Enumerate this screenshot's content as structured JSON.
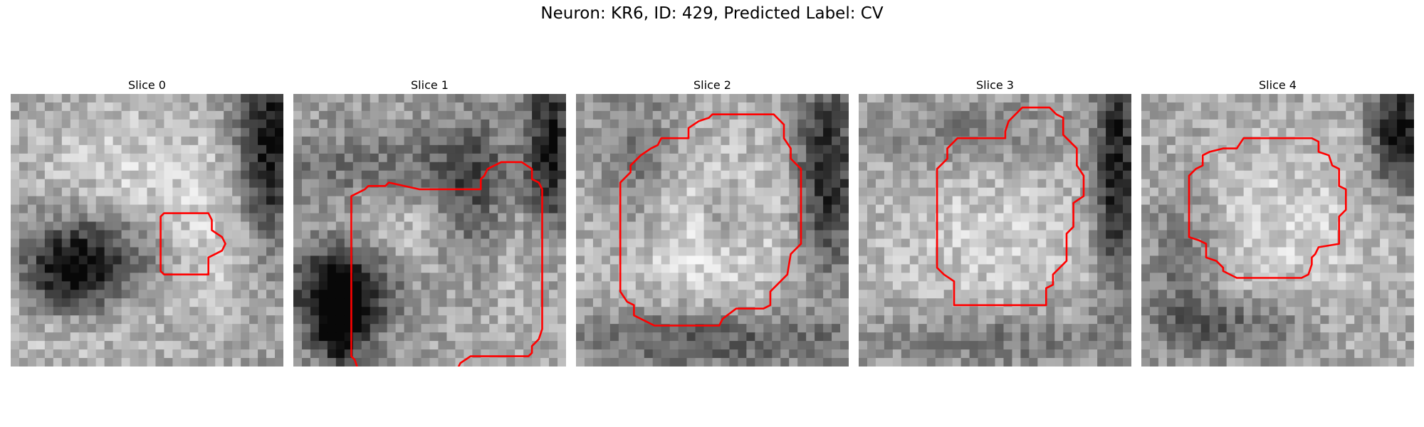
{
  "figure": {
    "title": "Neuron: KR6, ID: 429, Predicted Label: CV"
  },
  "slices": [
    {
      "title": "Slice 0",
      "seed": 11,
      "blobs": [
        [
          0.45,
          0.28,
          0.3,
          0.22,
          0.18
        ],
        [
          0.78,
          0.6,
          0.3,
          0.2,
          0.16
        ],
        [
          0.12,
          0.8,
          0.28,
          0.18,
          0.15
        ]
      ],
      "darks": [
        [
          0.3,
          0.6,
          0.18,
          0.12,
          0.55
        ],
        [
          0.95,
          0.2,
          0.08,
          0.3,
          0.6
        ],
        [
          0.2,
          0.68,
          0.12,
          0.1,
          0.35
        ]
      ],
      "contour": [
        [
          45,
          35
        ],
        [
          58,
          35
        ],
        [
          59,
          37
        ],
        [
          59,
          40
        ],
        [
          62,
          42
        ],
        [
          63,
          44
        ],
        [
          62,
          46
        ],
        [
          58,
          48
        ],
        [
          58,
          53
        ],
        [
          45,
          53
        ],
        [
          44,
          52
        ],
        [
          44,
          36
        ]
      ]
    },
    {
      "title": "Slice 1",
      "seed": 23,
      "blobs": [
        [
          0.42,
          0.44,
          0.2,
          0.16,
          0.18
        ],
        [
          0.8,
          0.65,
          0.2,
          0.22,
          0.12
        ]
      ],
      "darks": [
        [
          0.18,
          0.72,
          0.14,
          0.12,
          0.6
        ],
        [
          0.17,
          0.85,
          0.06,
          0.12,
          0.55
        ],
        [
          0.94,
          0.18,
          0.06,
          0.25,
          0.5
        ],
        [
          0.65,
          0.4,
          0.1,
          0.2,
          0.35
        ],
        [
          0.35,
          0.28,
          0.3,
          0.1,
          0.25
        ]
      ],
      "contour": [
        [
          37,
          28
        ],
        [
          55,
          28
        ],
        [
          55,
          25
        ],
        [
          56,
          24
        ],
        [
          57,
          22
        ],
        [
          59,
          21
        ],
        [
          61,
          20
        ],
        [
          67,
          20
        ],
        [
          70,
          22
        ],
        [
          70,
          25
        ],
        [
          72,
          26
        ],
        [
          73,
          28
        ],
        [
          73,
          69
        ],
        [
          72,
          72
        ],
        [
          70,
          74
        ],
        [
          70,
          76
        ],
        [
          69,
          77
        ],
        [
          52,
          77
        ],
        [
          49,
          79
        ],
        [
          48,
          81
        ],
        [
          19,
          81
        ],
        [
          18,
          78
        ],
        [
          17,
          77
        ],
        [
          17,
          30
        ],
        [
          19,
          29
        ],
        [
          21,
          28
        ],
        [
          22,
          27
        ],
        [
          27,
          27
        ],
        [
          28,
          26
        ]
      ]
    },
    {
      "title": "Slice 2",
      "seed": 37,
      "blobs": [
        [
          0.5,
          0.52,
          0.34,
          0.3,
          0.2
        ],
        [
          0.3,
          0.55,
          0.15,
          0.15,
          0.1
        ]
      ],
      "darks": [
        [
          0.92,
          0.3,
          0.08,
          0.25,
          0.55
        ],
        [
          0.5,
          0.9,
          0.35,
          0.08,
          0.35
        ],
        [
          0.22,
          0.3,
          0.1,
          0.25,
          0.25
        ],
        [
          0.55,
          0.45,
          0.06,
          0.08,
          0.2
        ]
      ],
      "contour": [
        [
          50,
          6
        ],
        [
          58,
          6
        ],
        [
          61,
          9
        ],
        [
          61,
          13
        ],
        [
          63,
          16
        ],
        [
          63,
          19
        ],
        [
          66,
          22
        ],
        [
          66,
          44
        ],
        [
          63,
          47
        ],
        [
          62,
          53
        ],
        [
          59,
          56
        ],
        [
          57,
          58
        ],
        [
          57,
          62
        ],
        [
          55,
          63
        ],
        [
          47,
          63
        ],
        [
          43,
          66
        ],
        [
          42,
          68
        ],
        [
          23,
          68
        ],
        [
          17,
          65
        ],
        [
          17,
          62
        ],
        [
          15,
          61
        ],
        [
          13,
          58
        ],
        [
          13,
          26
        ],
        [
          16,
          23
        ],
        [
          16,
          21
        ],
        [
          19,
          18
        ],
        [
          22,
          16
        ],
        [
          24,
          15
        ],
        [
          25,
          13
        ],
        [
          33,
          13
        ],
        [
          33,
          10
        ],
        [
          36,
          8
        ],
        [
          39,
          7
        ],
        [
          40,
          6
        ]
      ]
    },
    {
      "title": "Slice 3",
      "seed": 41,
      "blobs": [
        [
          0.48,
          0.52,
          0.36,
          0.34,
          0.18
        ]
      ],
      "darks": [
        [
          0.95,
          0.3,
          0.06,
          0.3,
          0.6
        ],
        [
          0.4,
          0.15,
          0.25,
          0.1,
          0.2
        ],
        [
          0.5,
          0.9,
          0.3,
          0.08,
          0.25
        ]
      ],
      "contour": [
        [
          52,
          4
        ],
        [
          56,
          4
        ],
        [
          58,
          6
        ],
        [
          60,
          7
        ],
        [
          60,
          12
        ],
        [
          64,
          16
        ],
        [
          64,
          21
        ],
        [
          66,
          24
        ],
        [
          66,
          30
        ],
        [
          63,
          32
        ],
        [
          63,
          39
        ],
        [
          61,
          41
        ],
        [
          61,
          49
        ],
        [
          57,
          53
        ],
        [
          57,
          56
        ],
        [
          55,
          57
        ],
        [
          55,
          62
        ],
        [
          28,
          62
        ],
        [
          28,
          55
        ],
        [
          25,
          53
        ],
        [
          23,
          51
        ],
        [
          23,
          22
        ],
        [
          26,
          19
        ],
        [
          26,
          16
        ],
        [
          29,
          13
        ],
        [
          36,
          13
        ],
        [
          43,
          13
        ],
        [
          43,
          11
        ],
        [
          44,
          8
        ],
        [
          46,
          6
        ],
        [
          48,
          4
        ]
      ]
    },
    {
      "title": "Slice 4",
      "seed": 59,
      "blobs": [
        [
          0.52,
          0.48,
          0.36,
          0.32,
          0.2
        ]
      ],
      "darks": [
        [
          0.95,
          0.15,
          0.08,
          0.15,
          0.6
        ],
        [
          0.35,
          0.85,
          0.2,
          0.08,
          0.3
        ],
        [
          0.15,
          0.6,
          0.1,
          0.2,
          0.25
        ]
      ],
      "contour": [
        [
          30,
          13
        ],
        [
          50,
          13
        ],
        [
          52,
          14
        ],
        [
          52,
          17
        ],
        [
          55,
          18
        ],
        [
          56,
          21
        ],
        [
          58,
          22
        ],
        [
          58,
          27
        ],
        [
          60,
          28
        ],
        [
          60,
          34
        ],
        [
          58,
          36
        ],
        [
          58,
          44
        ],
        [
          52,
          45
        ],
        [
          51,
          47
        ],
        [
          50,
          48
        ],
        [
          50,
          50
        ],
        [
          49,
          53
        ],
        [
          47,
          54
        ],
        [
          28,
          54
        ],
        [
          24,
          52
        ],
        [
          24,
          51
        ],
        [
          22,
          49
        ],
        [
          19,
          48
        ],
        [
          19,
          44
        ],
        [
          17,
          43
        ],
        [
          14,
          42
        ],
        [
          14,
          36
        ],
        [
          14,
          24
        ],
        [
          16,
          22
        ],
        [
          18,
          21
        ],
        [
          18,
          18
        ],
        [
          20,
          17
        ],
        [
          24,
          16
        ],
        [
          28,
          16
        ]
      ]
    }
  ]
}
